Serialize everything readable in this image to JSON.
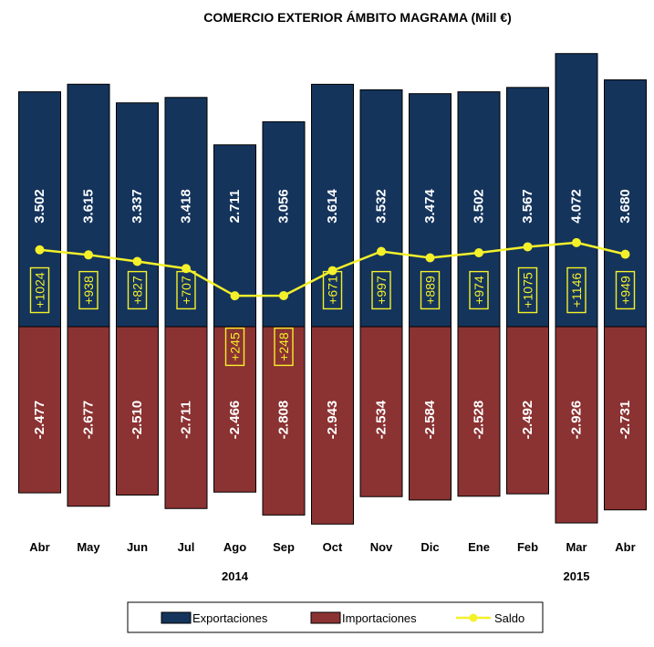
{
  "chart_data": {
    "type": "bar",
    "title": "COMERCIO EXTERIOR ÁMBITO MAGRAMA (Mill €)",
    "categories": [
      "Abr",
      "May",
      "Jun",
      "Jul",
      "Ago",
      "Sep",
      "Oct",
      "Nov",
      "Dic",
      "Ene",
      "Feb",
      "Mar",
      "Abr"
    ],
    "year_labels": [
      {
        "label": "2014",
        "category_index": 4
      },
      {
        "label": "2015",
        "category_index": 11
      }
    ],
    "series": [
      {
        "name": "Exportaciones",
        "color": "#14345c",
        "values": [
          3502,
          3615,
          3337,
          3418,
          2711,
          3056,
          3614,
          3532,
          3474,
          3502,
          3567,
          4072,
          3680
        ],
        "labels": [
          "3.502",
          "3.615",
          "3.337",
          "3.418",
          "2.711",
          "3.056",
          "3.614",
          "3.532",
          "3.474",
          "3.502",
          "3.567",
          "4.072",
          "3.680"
        ]
      },
      {
        "name": "Importaciones",
        "color": "#8b3232",
        "values": [
          -2477,
          -2677,
          -2510,
          -2711,
          -2466,
          -2808,
          -2943,
          -2534,
          -2584,
          -2528,
          -2492,
          -2926,
          -2731
        ],
        "labels": [
          "-2.477",
          "-2.677",
          "-2.510",
          "-2.711",
          "-2.466",
          "-2.808",
          "-2.943",
          "-2.534",
          "-2.584",
          "-2.528",
          "-2.492",
          "-2.926",
          "-2.731"
        ]
      },
      {
        "name": "Saldo",
        "type": "line",
        "color": "#f4f02a",
        "values": [
          1024,
          938,
          827,
          707,
          245,
          248,
          671,
          997,
          889,
          974,
          1075,
          1146,
          949
        ],
        "labels": [
          "+1024",
          "+938",
          "+827",
          "+707",
          "+245",
          "+248",
          "+671",
          "+997",
          "+889",
          "+974",
          "+1075",
          "+1146",
          "+949"
        ]
      }
    ],
    "ylim": [
      -3000,
      4200
    ],
    "grid": false,
    "legend_position": "bottom"
  }
}
